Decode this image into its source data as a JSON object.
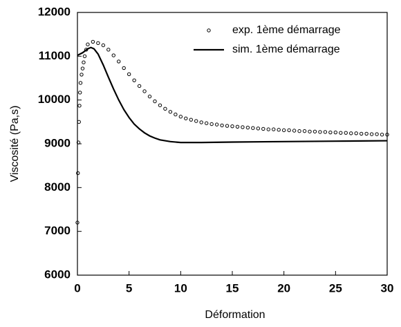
{
  "chart_data": {
    "type": "line",
    "xlabel": "Déformation",
    "ylabel": "Viscosité (Pa,s)",
    "xlim": [
      0,
      30
    ],
    "ylim": [
      6000,
      12000
    ],
    "xticks": [
      0,
      5,
      10,
      15,
      20,
      25,
      30
    ],
    "yticks": [
      6000,
      7000,
      8000,
      9000,
      10000,
      11000,
      12000
    ],
    "legend": "upper right",
    "series": [
      {
        "name": "exp. 1ème démarrage",
        "type": "scatter",
        "color": "#000000",
        "x": [
          0,
          0.05,
          0.1,
          0.15,
          0.2,
          0.25,
          0.3,
          0.4,
          0.5,
          0.6,
          0.7,
          0.85,
          1.0,
          1.5,
          2,
          2.5,
          3,
          3.5,
          4,
          4.5,
          5,
          5.5,
          6,
          6.5,
          7,
          7.5,
          8,
          8.5,
          9,
          9.5,
          10,
          10.5,
          11,
          11.5,
          12,
          12.5,
          13,
          13.5,
          14,
          14.5,
          15,
          15.5,
          16,
          16.5,
          17,
          17.5,
          18,
          18.5,
          19,
          19.5,
          20,
          20.5,
          21,
          21.5,
          22,
          22.5,
          23,
          23.5,
          24,
          24.5,
          25,
          25.5,
          26,
          26.5,
          27,
          27.5,
          28,
          28.5,
          29,
          29.5,
          30
        ],
        "values": [
          7200,
          8330,
          9030,
          9500,
          9870,
          10170,
          10390,
          10580,
          10720,
          10860,
          11000,
          11150,
          11270,
          11330,
          11300,
          11250,
          11150,
          11020,
          10880,
          10730,
          10590,
          10450,
          10320,
          10200,
          10080,
          9970,
          9880,
          9800,
          9730,
          9670,
          9620,
          9580,
          9550,
          9520,
          9490,
          9470,
          9450,
          9440,
          9420,
          9410,
          9400,
          9390,
          9380,
          9370,
          9360,
          9350,
          9340,
          9330,
          9330,
          9320,
          9310,
          9310,
          9300,
          9290,
          9290,
          9280,
          9280,
          9270,
          9270,
          9260,
          9260,
          9250,
          9250,
          9240,
          9240,
          9230,
          9230,
          9220,
          9220,
          9210,
          9210
        ]
      },
      {
        "name": "sim. 1ème démarrage",
        "type": "line",
        "color": "#000000",
        "x": [
          0,
          0.5,
          1,
          1.3,
          1.6,
          2,
          2.5,
          3,
          3.5,
          4,
          4.5,
          5,
          5.5,
          6,
          6.5,
          7,
          7.5,
          8,
          9,
          10,
          12,
          15,
          20,
          25,
          30
        ],
        "values": [
          11020,
          11080,
          11170,
          11200,
          11170,
          11050,
          10800,
          10520,
          10250,
          10000,
          9780,
          9600,
          9450,
          9340,
          9250,
          9180,
          9130,
          9090,
          9050,
          9030,
          9030,
          9040,
          9050,
          9060,
          9070
        ]
      }
    ]
  }
}
